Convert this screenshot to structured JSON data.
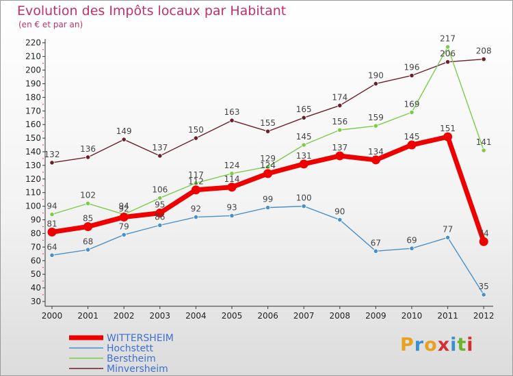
{
  "header": {
    "title": "Evolution des Impôts locaux par Habitant",
    "subtitle": "(en € et par an)"
  },
  "logo": {
    "text": "Proxiti",
    "colors": [
      "#e8a020",
      "#3a8fd0",
      "#e8a020",
      "#d03030",
      "#3a8fd0",
      "#6ab42d",
      "#d03030"
    ]
  },
  "chart_data": {
    "type": "line",
    "x": [
      "2000",
      "2001",
      "2002",
      "2003",
      "2004",
      "2005",
      "2006",
      "2007",
      "2008",
      "2009",
      "2010",
      "2011",
      "2012"
    ],
    "ylim": [
      30,
      220
    ],
    "yticks": [
      30,
      40,
      50,
      60,
      70,
      80,
      90,
      100,
      110,
      120,
      130,
      140,
      150,
      160,
      170,
      180,
      190,
      200,
      210,
      220
    ],
    "grid": false,
    "legend_position": "bottom-left",
    "series": [
      {
        "name": "Minversheim",
        "color": "#6b1f2a",
        "values": [
          132,
          136,
          149,
          137,
          150,
          163,
          155,
          165,
          174,
          190,
          196,
          206,
          208
        ]
      },
      {
        "name": "Berstheim",
        "color": "#7ccc4c",
        "values": [
          94,
          102,
          94,
          106,
          117,
          124,
          129,
          145,
          156,
          159,
          169,
          217,
          141
        ]
      },
      {
        "name": "Hochstett",
        "color": "#4a90c8",
        "values": [
          64,
          68,
          79,
          86,
          92,
          93,
          99,
          100,
          90,
          67,
          69,
          77,
          35
        ]
      },
      {
        "name": "WITTERSHEIM",
        "color": "#ee0000",
        "values": [
          81,
          85,
          92,
          95,
          112,
          114,
          124,
          131,
          137,
          134,
          145,
          151,
          74
        ]
      }
    ],
    "legend_order": [
      "WITTERSHEIM",
      "Hochstett",
      "Berstheim",
      "Minversheim"
    ]
  }
}
